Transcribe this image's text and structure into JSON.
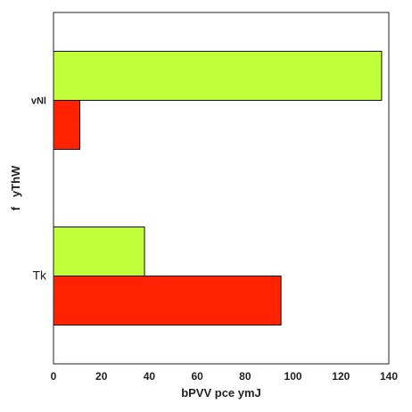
{
  "chart_data": {
    "type": "bar",
    "orientation": "horizontal",
    "categories": [
      "Tk",
      "vNl"
    ],
    "series": [
      {
        "values": [
          95,
          11
        ],
        "color": "#ff2200"
      },
      {
        "values": [
          38,
          137
        ],
        "color": "#c0ff3a"
      }
    ],
    "xlabel": "bPVV pce ymJ",
    "ylabel": "f   yThW",
    "xlim": [
      0,
      140
    ],
    "xticks": [
      0,
      20,
      40,
      60,
      80,
      100,
      120,
      140
    ],
    "grid": false,
    "legend": "none"
  }
}
